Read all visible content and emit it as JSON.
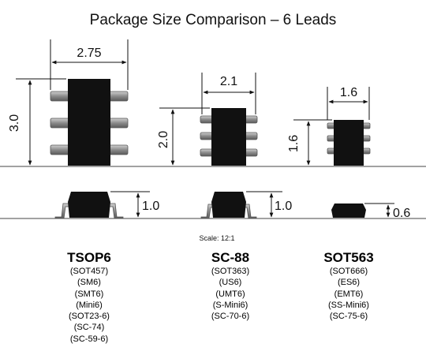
{
  "title": "Package Size Comparison – 6 Leads",
  "scale": "Scale: 12:1",
  "packages": [
    {
      "name": "TSOP6",
      "width_label": "2.75",
      "length_label": "3.0",
      "height_label": "1.0",
      "aliases": [
        "(SOT457)",
        "(SM6)",
        "(SMT6)",
        "(Mini6)",
        "(SOT23-6)",
        "(SC-74)",
        "(SC-59-6)"
      ]
    },
    {
      "name": "SC-88",
      "width_label": "2.1",
      "length_label": "2.0",
      "height_label": "1.0",
      "aliases": [
        "(SOT363)",
        "(US6)",
        "(UMT6)",
        "(S-Mini6)",
        "(SC-70-6)"
      ]
    },
    {
      "name": "SOT563",
      "width_label": "1.6",
      "length_label": "1.6",
      "height_label": "0.6",
      "aliases": [
        "(SOT666)",
        "(ES6)",
        "(EMT6)",
        "(SS-Mini6)",
        "(SC-75-6)"
      ]
    }
  ],
  "colors": {
    "body": "#111111",
    "lead": "#8c8c8c",
    "lead_edge": "#555555"
  }
}
